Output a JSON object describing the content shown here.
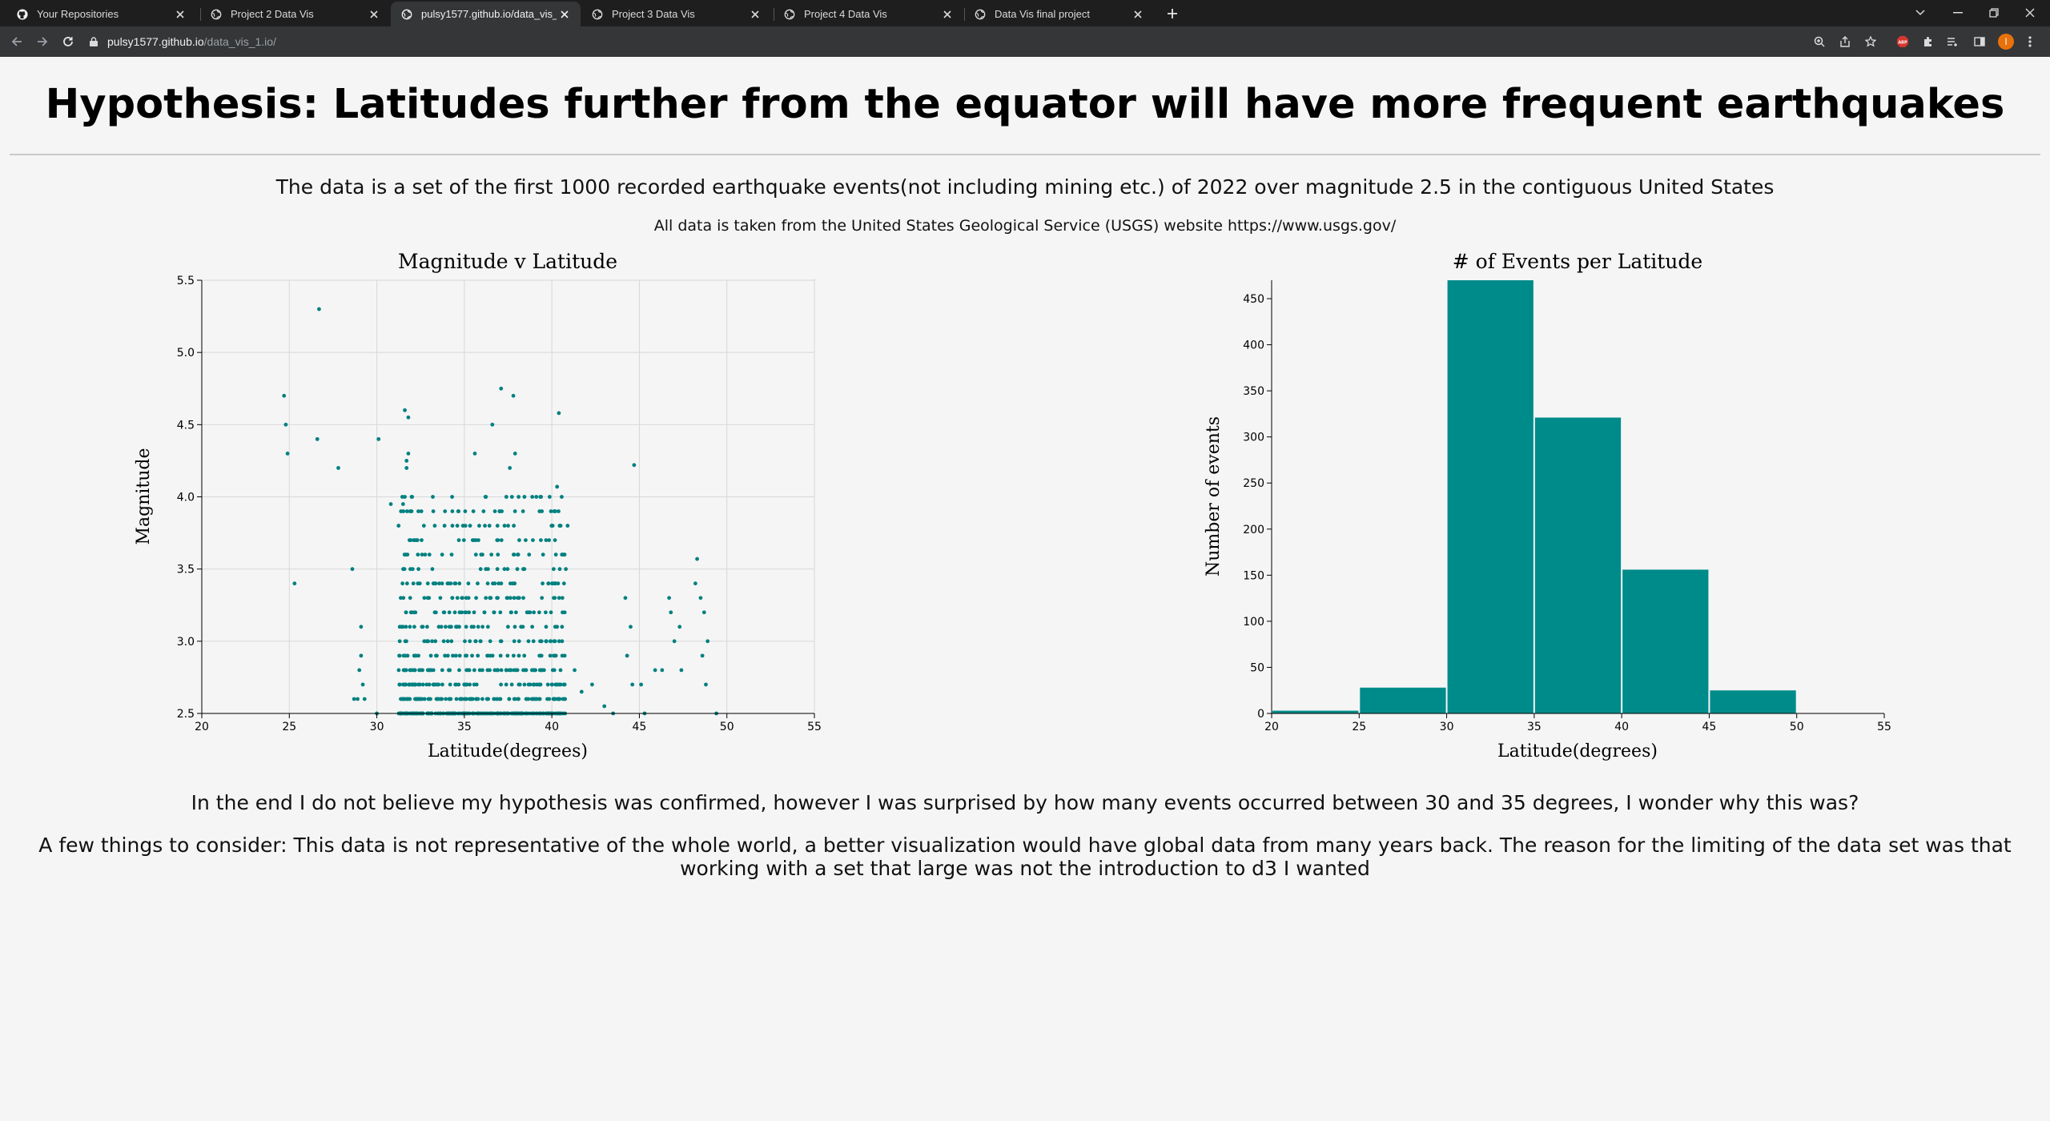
{
  "browser": {
    "tabs": [
      {
        "title": "Your Repositories",
        "icon": "github-icon"
      },
      {
        "title": "Project 2 Data Vis",
        "icon": "globe-icon"
      },
      {
        "title": "pulsy1577.github.io/data_vis_1.io/",
        "icon": "globe-icon",
        "active": true
      },
      {
        "title": "Project 3 Data Vis",
        "icon": "globe-icon"
      },
      {
        "title": "Project 4 Data Vis",
        "icon": "globe-icon"
      },
      {
        "title": "Data Vis final project",
        "icon": "globe-icon"
      }
    ],
    "url_host": "pulsy1577.github.io",
    "url_path": "/data_vis_1.io/",
    "profile_initial": "I",
    "colors": {
      "tabbar": "#1e1e1f",
      "toolbar": "#353638",
      "profile": "#e8710a",
      "abp": "#d8362e"
    }
  },
  "page": {
    "heading": "Hypothesis: Latitudes further from the equator will have more frequent earthquakes",
    "description": "The data is a set of the first 1000 recorded earthquake events(not including mining etc.) of 2022 over magnitude 2.5 in the contiguous United States",
    "source": "All data is taken from the United States Geological Service (USGS) website https://www.usgs.gov/",
    "conclusion": "In the end I do not believe my hypothesis was confirmed, however I was surprised by how many events occurred between 30 and 35 degrees, I wonder why this was?",
    "consider": "A few things to consider: This data is not representative of the whole world, a better visualization would have global data from many years back. The reason for the limiting of the data set was that working with a set that large was not the introduction to d3 I wanted"
  },
  "chart_data": [
    {
      "type": "scatter",
      "title": "Magnitude v Latitude",
      "xlabel": "Latitude(degrees)",
      "ylabel": "Magnitude",
      "xlim": [
        20,
        55
      ],
      "ylim": [
        2.5,
        5.5
      ],
      "xticks": [
        "20",
        "25",
        "30",
        "35",
        "40",
        "45",
        "50",
        "55"
      ],
      "yticks": [
        "2.5",
        "3.0",
        "3.5",
        "4.0",
        "4.5",
        "5.0",
        "5.5"
      ],
      "grid": true,
      "color": "#008080",
      "points": [
        [
          24.7,
          4.7
        ],
        [
          24.8,
          4.5
        ],
        [
          24.9,
          4.3
        ],
        [
          25.3,
          3.4
        ],
        [
          26.7,
          5.3
        ],
        [
          26.6,
          4.4
        ],
        [
          27.8,
          4.2
        ],
        [
          28.6,
          3.5
        ],
        [
          28.7,
          2.6
        ],
        [
          28.9,
          2.6
        ],
        [
          29.0,
          2.8
        ],
        [
          29.1,
          3.1
        ],
        [
          29.2,
          2.7
        ],
        [
          29.3,
          2.6
        ],
        [
          29.1,
          2.9
        ],
        [
          30.0,
          2.5
        ],
        [
          30.1,
          4.4
        ],
        [
          30.8,
          3.95
        ],
        [
          31.6,
          4.6
        ],
        [
          31.7,
          4.25
        ],
        [
          31.8,
          4.55
        ],
        [
          31.7,
          4.2
        ],
        [
          31.8,
          4.3
        ],
        [
          31.6,
          4.0
        ],
        [
          31.5,
          3.95
        ],
        [
          31.9,
          3.9
        ],
        [
          33.2,
          4.0
        ],
        [
          34.3,
          4.0
        ],
        [
          34.6,
          3.8
        ],
        [
          35.6,
          4.3
        ],
        [
          36.6,
          4.5
        ],
        [
          37.1,
          4.75
        ],
        [
          37.8,
          4.7
        ],
        [
          37.6,
          4.2
        ],
        [
          37.9,
          4.3
        ],
        [
          37.4,
          4.0
        ],
        [
          38.1,
          4.0
        ],
        [
          40.4,
          4.58
        ],
        [
          40.3,
          4.07
        ],
        [
          40.5,
          3.8
        ],
        [
          40.9,
          3.8
        ],
        [
          44.7,
          4.22
        ],
        [
          44.2,
          3.3
        ],
        [
          44.5,
          3.1
        ],
        [
          44.3,
          2.9
        ],
        [
          44.6,
          2.7
        ],
        [
          45.3,
          2.5
        ],
        [
          46.7,
          3.3
        ],
        [
          46.8,
          3.2
        ],
        [
          47.3,
          3.1
        ],
        [
          47.0,
          3.0
        ],
        [
          47.4,
          2.8
        ],
        [
          48.3,
          3.57
        ],
        [
          48.2,
          3.4
        ],
        [
          48.5,
          3.3
        ],
        [
          48.7,
          3.2
        ],
        [
          48.9,
          3.0
        ],
        [
          48.6,
          2.9
        ],
        [
          48.8,
          2.7
        ],
        [
          49.4,
          2.5
        ],
        [
          46.3,
          2.8
        ],
        [
          45.9,
          2.8
        ],
        [
          45.1,
          2.7
        ],
        [
          43.5,
          2.5
        ],
        [
          43.0,
          2.55
        ],
        [
          42.3,
          2.7
        ],
        [
          41.7,
          2.65
        ],
        [
          41.3,
          2.8
        ],
        [
          40.8,
          3.5
        ],
        [
          40.6,
          3.3
        ]
      ]
    },
    {
      "type": "bar",
      "title": "# of Events per Latitude",
      "xlabel": "Latitude(degrees)",
      "ylabel": "Number of events",
      "xlim": [
        20,
        55
      ],
      "ylim": [
        0,
        470
      ],
      "xticks": [
        "20",
        "25",
        "30",
        "35",
        "40",
        "45",
        "50",
        "55"
      ],
      "yticks": [
        "0",
        "50",
        "100",
        "150",
        "200",
        "250",
        "300",
        "350",
        "400",
        "450"
      ],
      "grid": false,
      "color": "#008b8b",
      "bins": [
        [
          20,
          25
        ],
        [
          25,
          30
        ],
        [
          30,
          35
        ],
        [
          35,
          40
        ],
        [
          40,
          45
        ],
        [
          45,
          50
        ]
      ],
      "values": [
        3,
        28,
        470,
        321,
        156,
        25
      ]
    }
  ]
}
